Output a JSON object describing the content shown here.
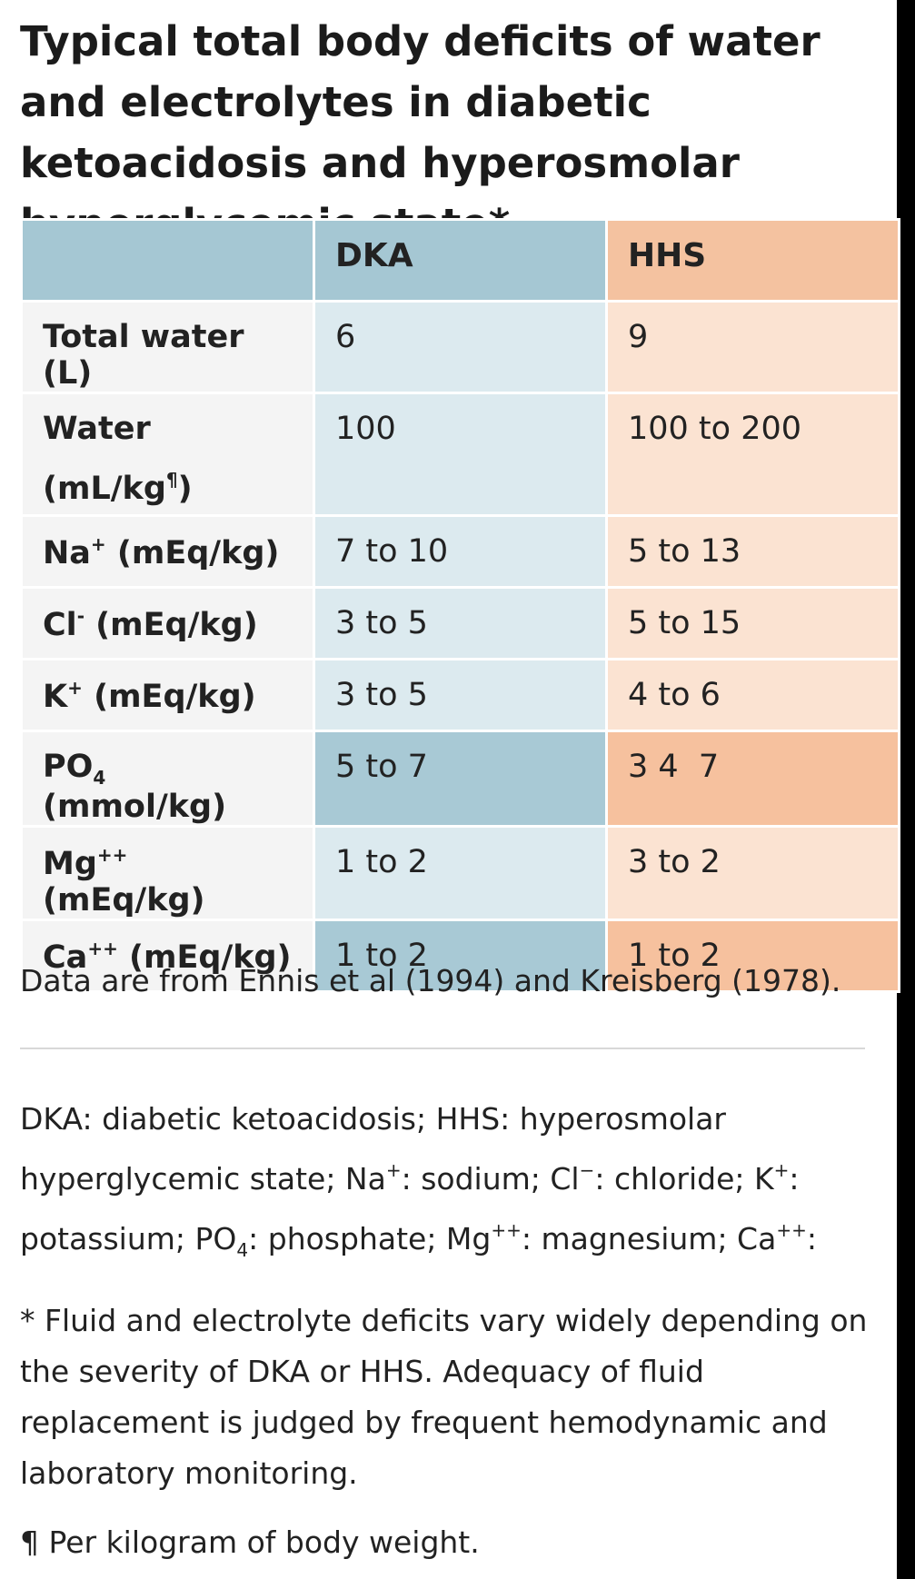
{
  "title": "Typical total body deficits of water and electrolytes in diabetic ketoacidosis and hyperosmolar hyperglycemic state*",
  "table": {
    "headers": [
      "",
      "DKA",
      "HHS"
    ],
    "rows": [
      {
        "label": "Total water (L)",
        "dka": "6",
        "hhs": "9"
      },
      {
        "label_main": "Water",
        "label_unit": "(mL/kg",
        "label_sup": "¶",
        "label_end": ")",
        "dka": "100",
        "hhs": "100 to 200"
      },
      {
        "label_main": "Na",
        "label_sup": "+",
        "label_end": " (mEq/kg)",
        "dka": "7 to 10",
        "hhs": "5 to 13"
      },
      {
        "label_main": "Cl",
        "label_sup": "-",
        "label_end": " (mEq/kg)",
        "dka": "3 to 5",
        "hhs": "5 to 15"
      },
      {
        "label_main": "K",
        "label_sup": "+",
        "label_end": " (mEq/kg)",
        "dka": "3 to 5",
        "hhs": "4 to 6"
      },
      {
        "label_main": "PO",
        "label_sub": "4",
        "label_end": " (mmol/kg)",
        "dka": "5 to 7",
        "hhs": "3 4  7"
      },
      {
        "label_main": "Mg",
        "label_sup": "++",
        "label_end": " (mEq/kg)",
        "dka": "1 to 2",
        "hhs": "3 to 2"
      },
      {
        "label_main": "Ca",
        "label_sup": "++",
        "label_end": " (mEq/kg)",
        "dka": "1 to 2",
        "hhs": "1 to 2"
      }
    ]
  },
  "source": "Data are from Ennis et al (1994) and Kreisberg (1978).",
  "abbreviations": {
    "p1": "DKA: diabetic ketoacidosis; HHS: hyperosmolar hyperglycemic state; Na",
    "s1": "+",
    "p2": ": sodium; Cl",
    "s2": "−",
    "p3": ": chloride; K",
    "s3": "+",
    "p4": ": potassium; PO",
    "b4": "4",
    "p5": ": phosphate; Mg",
    "s5": "++",
    "p6": ": magnesium; Ca",
    "s6": "++",
    "p7": ":"
  },
  "footnote_star": "* Fluid and electrolyte deficits vary widely depending on the severity of DKA or HHS. Adequacy of fluid replacement is judged by frequent hemodynamic and laboratory monitoring.",
  "footnote_pilcrow": "¶ Per kilogram of body weight."
}
